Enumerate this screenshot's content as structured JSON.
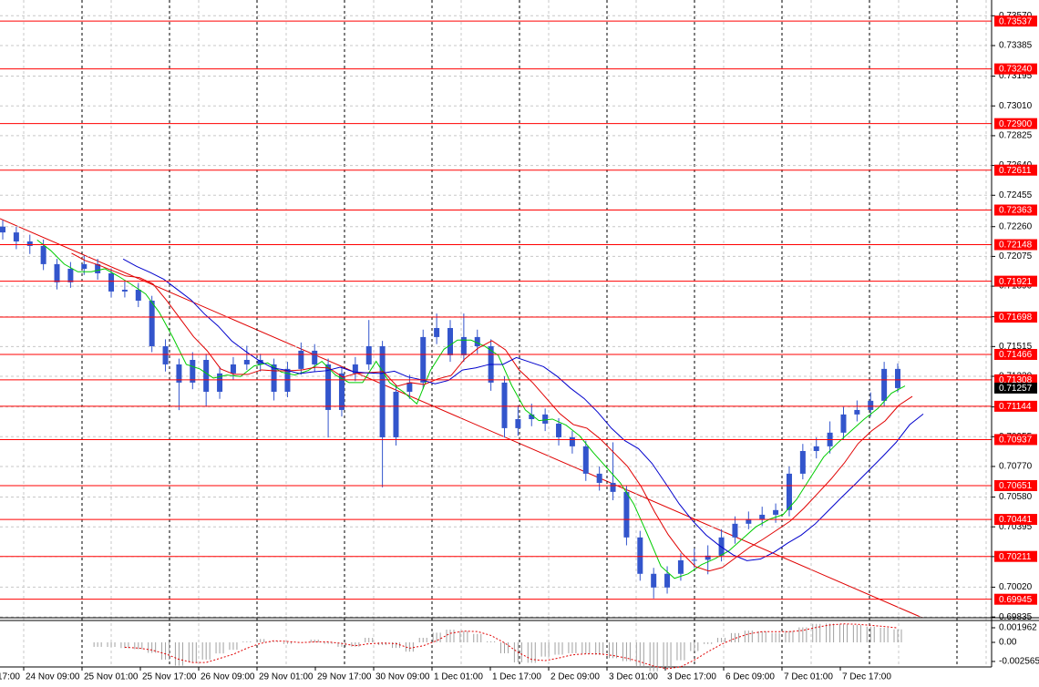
{
  "chart_data": {
    "type": "candlestick",
    "candles": [
      [
        0.7226,
        0.723,
        0.7218,
        0.72224
      ],
      [
        0.72224,
        0.7226,
        0.7212,
        0.72168
      ],
      [
        0.72168,
        0.7221,
        0.7209,
        0.7214
      ],
      [
        0.7214,
        0.7218,
        0.7199,
        0.72027
      ],
      [
        0.72027,
        0.7206,
        0.7187,
        0.71914
      ],
      [
        0.71914,
        0.7204,
        0.7188,
        0.71998
      ],
      [
        0.71998,
        0.7208,
        0.7196,
        0.72027
      ],
      [
        0.72027,
        0.7206,
        0.7193,
        0.7197
      ],
      [
        0.7197,
        0.72,
        0.7182,
        0.71857
      ],
      [
        0.71857,
        0.7192,
        0.7182,
        0.71868
      ],
      [
        0.71868,
        0.7191,
        0.7176,
        0.718
      ],
      [
        0.718,
        0.7183,
        0.7148,
        0.71517
      ],
      [
        0.71517,
        0.7156,
        0.7136,
        0.71404
      ],
      [
        0.71404,
        0.7144,
        0.7112,
        0.71291
      ],
      [
        0.71291,
        0.7148,
        0.7125,
        0.71432
      ],
      [
        0.71432,
        0.7147,
        0.7114,
        0.71234
      ],
      [
        0.71234,
        0.7139,
        0.7119,
        0.71348
      ],
      [
        0.71348,
        0.7145,
        0.7131,
        0.71404
      ],
      [
        0.71404,
        0.7152,
        0.7137,
        0.71432
      ],
      [
        0.71432,
        0.7147,
        0.7136,
        0.71404
      ],
      [
        0.71404,
        0.7144,
        0.7118,
        0.71234
      ],
      [
        0.71234,
        0.7142,
        0.712,
        0.71376
      ],
      [
        0.71376,
        0.7154,
        0.7134,
        0.71489
      ],
      [
        0.71489,
        0.7153,
        0.7136,
        0.71404
      ],
      [
        0.71404,
        0.7144,
        0.7095,
        0.71121
      ],
      [
        0.71121,
        0.7139,
        0.7108,
        0.71348
      ],
      [
        0.71348,
        0.7145,
        0.713,
        0.71404
      ],
      [
        0.71404,
        0.7168,
        0.7137,
        0.71517
      ],
      [
        0.71517,
        0.7155,
        0.7064,
        0.70951
      ],
      [
        0.70951,
        0.7128,
        0.709,
        0.71234
      ],
      [
        0.71234,
        0.7134,
        0.7119,
        0.71291
      ],
      [
        0.71291,
        0.7162,
        0.7125,
        0.71574
      ],
      [
        0.71574,
        0.7172,
        0.7153,
        0.7163
      ],
      [
        0.7163,
        0.7168,
        0.7142,
        0.71461
      ],
      [
        0.71461,
        0.7172,
        0.7142,
        0.71574
      ],
      [
        0.71574,
        0.7162,
        0.7147,
        0.71517
      ],
      [
        0.71517,
        0.7156,
        0.7124,
        0.71291
      ],
      [
        0.71291,
        0.7133,
        0.7095,
        0.71008
      ],
      [
        0.71008,
        0.7115,
        0.7096,
        0.71064
      ],
      [
        0.71064,
        0.7116,
        0.7102,
        0.71093
      ],
      [
        0.71093,
        0.7113,
        0.7099,
        0.71036
      ],
      [
        0.71036,
        0.7107,
        0.709,
        0.70951
      ],
      [
        0.70951,
        0.7099,
        0.7085,
        0.70895
      ],
      [
        0.70895,
        0.7093,
        0.7068,
        0.70725
      ],
      [
        0.70725,
        0.7077,
        0.7062,
        0.70668
      ],
      [
        0.70668,
        0.7092,
        0.7056,
        0.70612
      ],
      [
        0.70612,
        0.7065,
        0.7028,
        0.70329
      ],
      [
        0.70329,
        0.7037,
        0.7006,
        0.70103
      ],
      [
        0.70103,
        0.7014,
        0.6995,
        0.70018
      ],
      [
        0.70018,
        0.7015,
        0.6998,
        0.70103
      ],
      [
        0.70103,
        0.7023,
        0.7006,
        0.70187
      ],
      [
        0.70187,
        0.7026,
        0.7014,
        0.7019
      ],
      [
        0.7019,
        0.7028,
        0.701,
        0.70216
      ],
      [
        0.70216,
        0.7038,
        0.7018,
        0.70329
      ],
      [
        0.70329,
        0.7046,
        0.7029,
        0.70414
      ],
      [
        0.70414,
        0.7049,
        0.7038,
        0.70442
      ],
      [
        0.70442,
        0.7052,
        0.704,
        0.7047
      ],
      [
        0.7047,
        0.7054,
        0.7042,
        0.70499
      ],
      [
        0.70499,
        0.7077,
        0.7046,
        0.70725
      ],
      [
        0.70725,
        0.7091,
        0.7069,
        0.70866
      ],
      [
        0.70866,
        0.7095,
        0.7082,
        0.70895
      ],
      [
        0.70895,
        0.7105,
        0.7085,
        0.7098
      ],
      [
        0.7098,
        0.7114,
        0.7094,
        0.71093
      ],
      [
        0.71093,
        0.7118,
        0.7105,
        0.71121
      ],
      [
        0.71121,
        0.7123,
        0.7108,
        0.71178
      ],
      [
        0.71178,
        0.7142,
        0.7114,
        0.71376
      ],
      [
        0.71376,
        0.7141,
        0.7123,
        0.71257
      ]
    ],
    "candle_color": "#3355cc",
    "ylim": [
      0.6983,
      0.73668
    ],
    "yticks": [
      {
        "value": 0.7357,
        "label": "0.73570"
      },
      0.73385,
      0.73195,
      {
        "value": 0.7301,
        "label": "0.73010"
      },
      0.72825,
      {
        "value": 0.7264,
        "label": "0.72640"
      },
      0.72455,
      {
        "value": 0.7226,
        "label": "0.72260"
      },
      0.72075,
      {
        "value": 0.7189,
        "label": "0.71890"
      },
      {
        "value": 0.717,
        "label": "0.71700"
      },
      0.71515,
      {
        "value": 0.7133,
        "label": "0.71330"
      },
      {
        "value": 0.7114,
        "label": "0.71140"
      },
      0.70955,
      {
        "value": 0.7077,
        "label": "0.70770"
      },
      {
        "value": 0.7058,
        "label": "0.70580"
      },
      0.70395,
      {
        "value": 0.7021,
        "label": "0.70210"
      },
      {
        "value": 0.7002,
        "label": "0.70020"
      },
      0.69835
    ],
    "levels": [
      0.73537,
      {
        "value": 0.7324,
        "label": "0.73240"
      },
      {
        "value": 0.729,
        "label": "0.72900"
      },
      0.72611,
      0.72363,
      0.72148,
      0.71921,
      0.71698,
      0.71466,
      0.71308,
      0.71144,
      0.70937,
      0.70651,
      0.70441,
      0.70211,
      0.69945
    ],
    "level_color": "#ff0000",
    "current_price": 0.71257,
    "xtick_labels": [
      "17:00",
      "24 Nov 09:00",
      "25 Nov 01:00",
      "25 Nov 17:00",
      "26 Nov 09:00",
      "29 Nov 01:00",
      "29 Nov 17:00",
      "30 Nov 09:00",
      "1 Dec 01:00",
      "1 Dec 17:00",
      "2 Dec 09:00",
      "3 Dec 01:00",
      "3 Dec 17:00",
      "6 Dec 09:00",
      "7 Dec 01:00",
      "7 Dec 17:00"
    ],
    "oscillator": {
      "ylim": [
        -0.00306,
        0.00294
      ],
      "yticks": [
        0.001962,
        {
          "value": 0,
          "label": "0.00"
        },
        -0.002565
      ]
    },
    "grid": true
  }
}
